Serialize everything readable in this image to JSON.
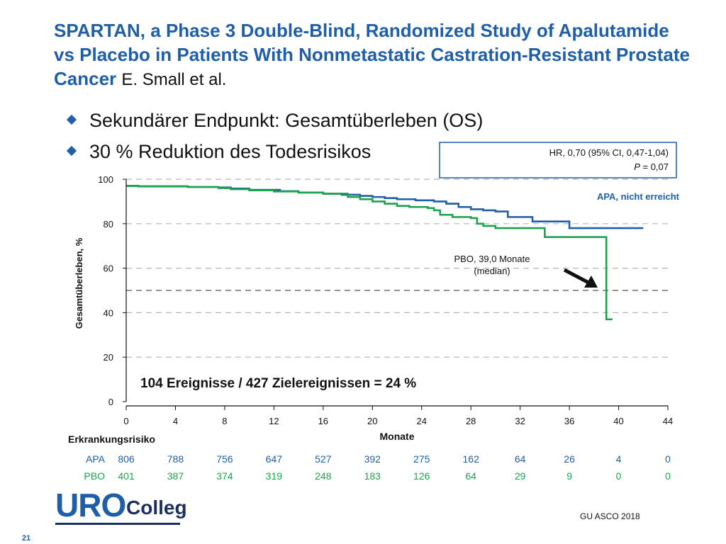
{
  "slide": {
    "title": "SPARTAN, a Phase 3 Double-Blind, Randomized Study of Apalutamide vs Placebo in Patients With Nonmetastatic Castration-Resistant Prostate Cancer",
    "title_author": "E. Small et al.",
    "bullets": [
      "Sekundärer Endpunkt: Gesamtüberleben (OS)",
      "30 % Reduktion des Todesrisikos"
    ],
    "source": "GU ASCO 2018",
    "page_number": "21",
    "logo": {
      "uro": "URO",
      "colleg": "Colleg"
    },
    "colors": {
      "accent": "#1f5ea8",
      "apa": "#1f5ea8",
      "pbo": "#1aa34a",
      "text": "#111111"
    }
  },
  "chart_data": {
    "type": "line",
    "title": "",
    "xlabel": "Monate",
    "ylabel": "Gesamtüberleben, %",
    "xlim": [
      0,
      44
    ],
    "ylim": [
      0,
      100
    ],
    "xticks": [
      0,
      4,
      8,
      12,
      16,
      20,
      24,
      28,
      32,
      36,
      40,
      44
    ],
    "yticks": [
      0,
      20,
      40,
      60,
      80,
      100
    ],
    "grid": "horizontal dashed",
    "median_reference_y": 50,
    "hr_box": {
      "line1": "HR, 0,70 (95% CI, 0,47-1,04)",
      "line2_prefix": "P",
      "line2_value": " = 0,07"
    },
    "annotations": {
      "apa": "APA, nicht erreicht",
      "pbo_line1": "PBO, 39,0 Monate",
      "pbo_line2": "(median)",
      "events": "104 Ereignisse / 427 Zielereignissen = 24 %"
    },
    "series": [
      {
        "name": "APA",
        "color": "#1f5ea8",
        "x": [
          0,
          1,
          5,
          7.5,
          8.5,
          10,
          12.5,
          14,
          16,
          17.5,
          19,
          20,
          21,
          22,
          23.5,
          25,
          26,
          27,
          28,
          29,
          30,
          31,
          33,
          35,
          36,
          38,
          42
        ],
        "y": [
          97,
          96.8,
          96.5,
          96.3,
          95.8,
          95.2,
          94.6,
          94,
          93.5,
          93,
          92.5,
          92,
          91.5,
          91,
          90.5,
          90,
          89,
          87.5,
          86.5,
          86,
          85.5,
          83,
          81,
          81,
          78,
          78,
          78
        ]
      },
      {
        "name": "PBO",
        "color": "#1aa34a",
        "x": [
          0,
          1,
          5,
          7.5,
          8.5,
          10,
          12,
          14,
          16,
          18,
          19,
          20,
          21,
          22,
          23,
          24.5,
          25,
          25.5,
          26.5,
          28,
          28.5,
          29,
          30,
          33,
          34,
          38,
          39,
          39,
          39.5
        ],
        "y": [
          97,
          96.8,
          96.5,
          96,
          95.5,
          95,
          94.5,
          94,
          93.5,
          92,
          91,
          90,
          89,
          88,
          87.5,
          87,
          86,
          84,
          83,
          82.5,
          80,
          79,
          78,
          78,
          74,
          74,
          74,
          37,
          37
        ]
      }
    ],
    "risk_table": {
      "header": "Erkrankungsrisiko",
      "rows": [
        {
          "name": "APA",
          "color": "#1f5ea8",
          "values": [
            "806",
            "788",
            "756",
            "647",
            "527",
            "392",
            "275",
            "162",
            "64",
            "26",
            "4",
            "0"
          ]
        },
        {
          "name": "PBO",
          "color": "#1aa34a",
          "values": [
            "401",
            "387",
            "374",
            "319",
            "248",
            "183",
            "126",
            "64",
            "29",
            "9",
            "0",
            "0"
          ]
        }
      ]
    }
  }
}
